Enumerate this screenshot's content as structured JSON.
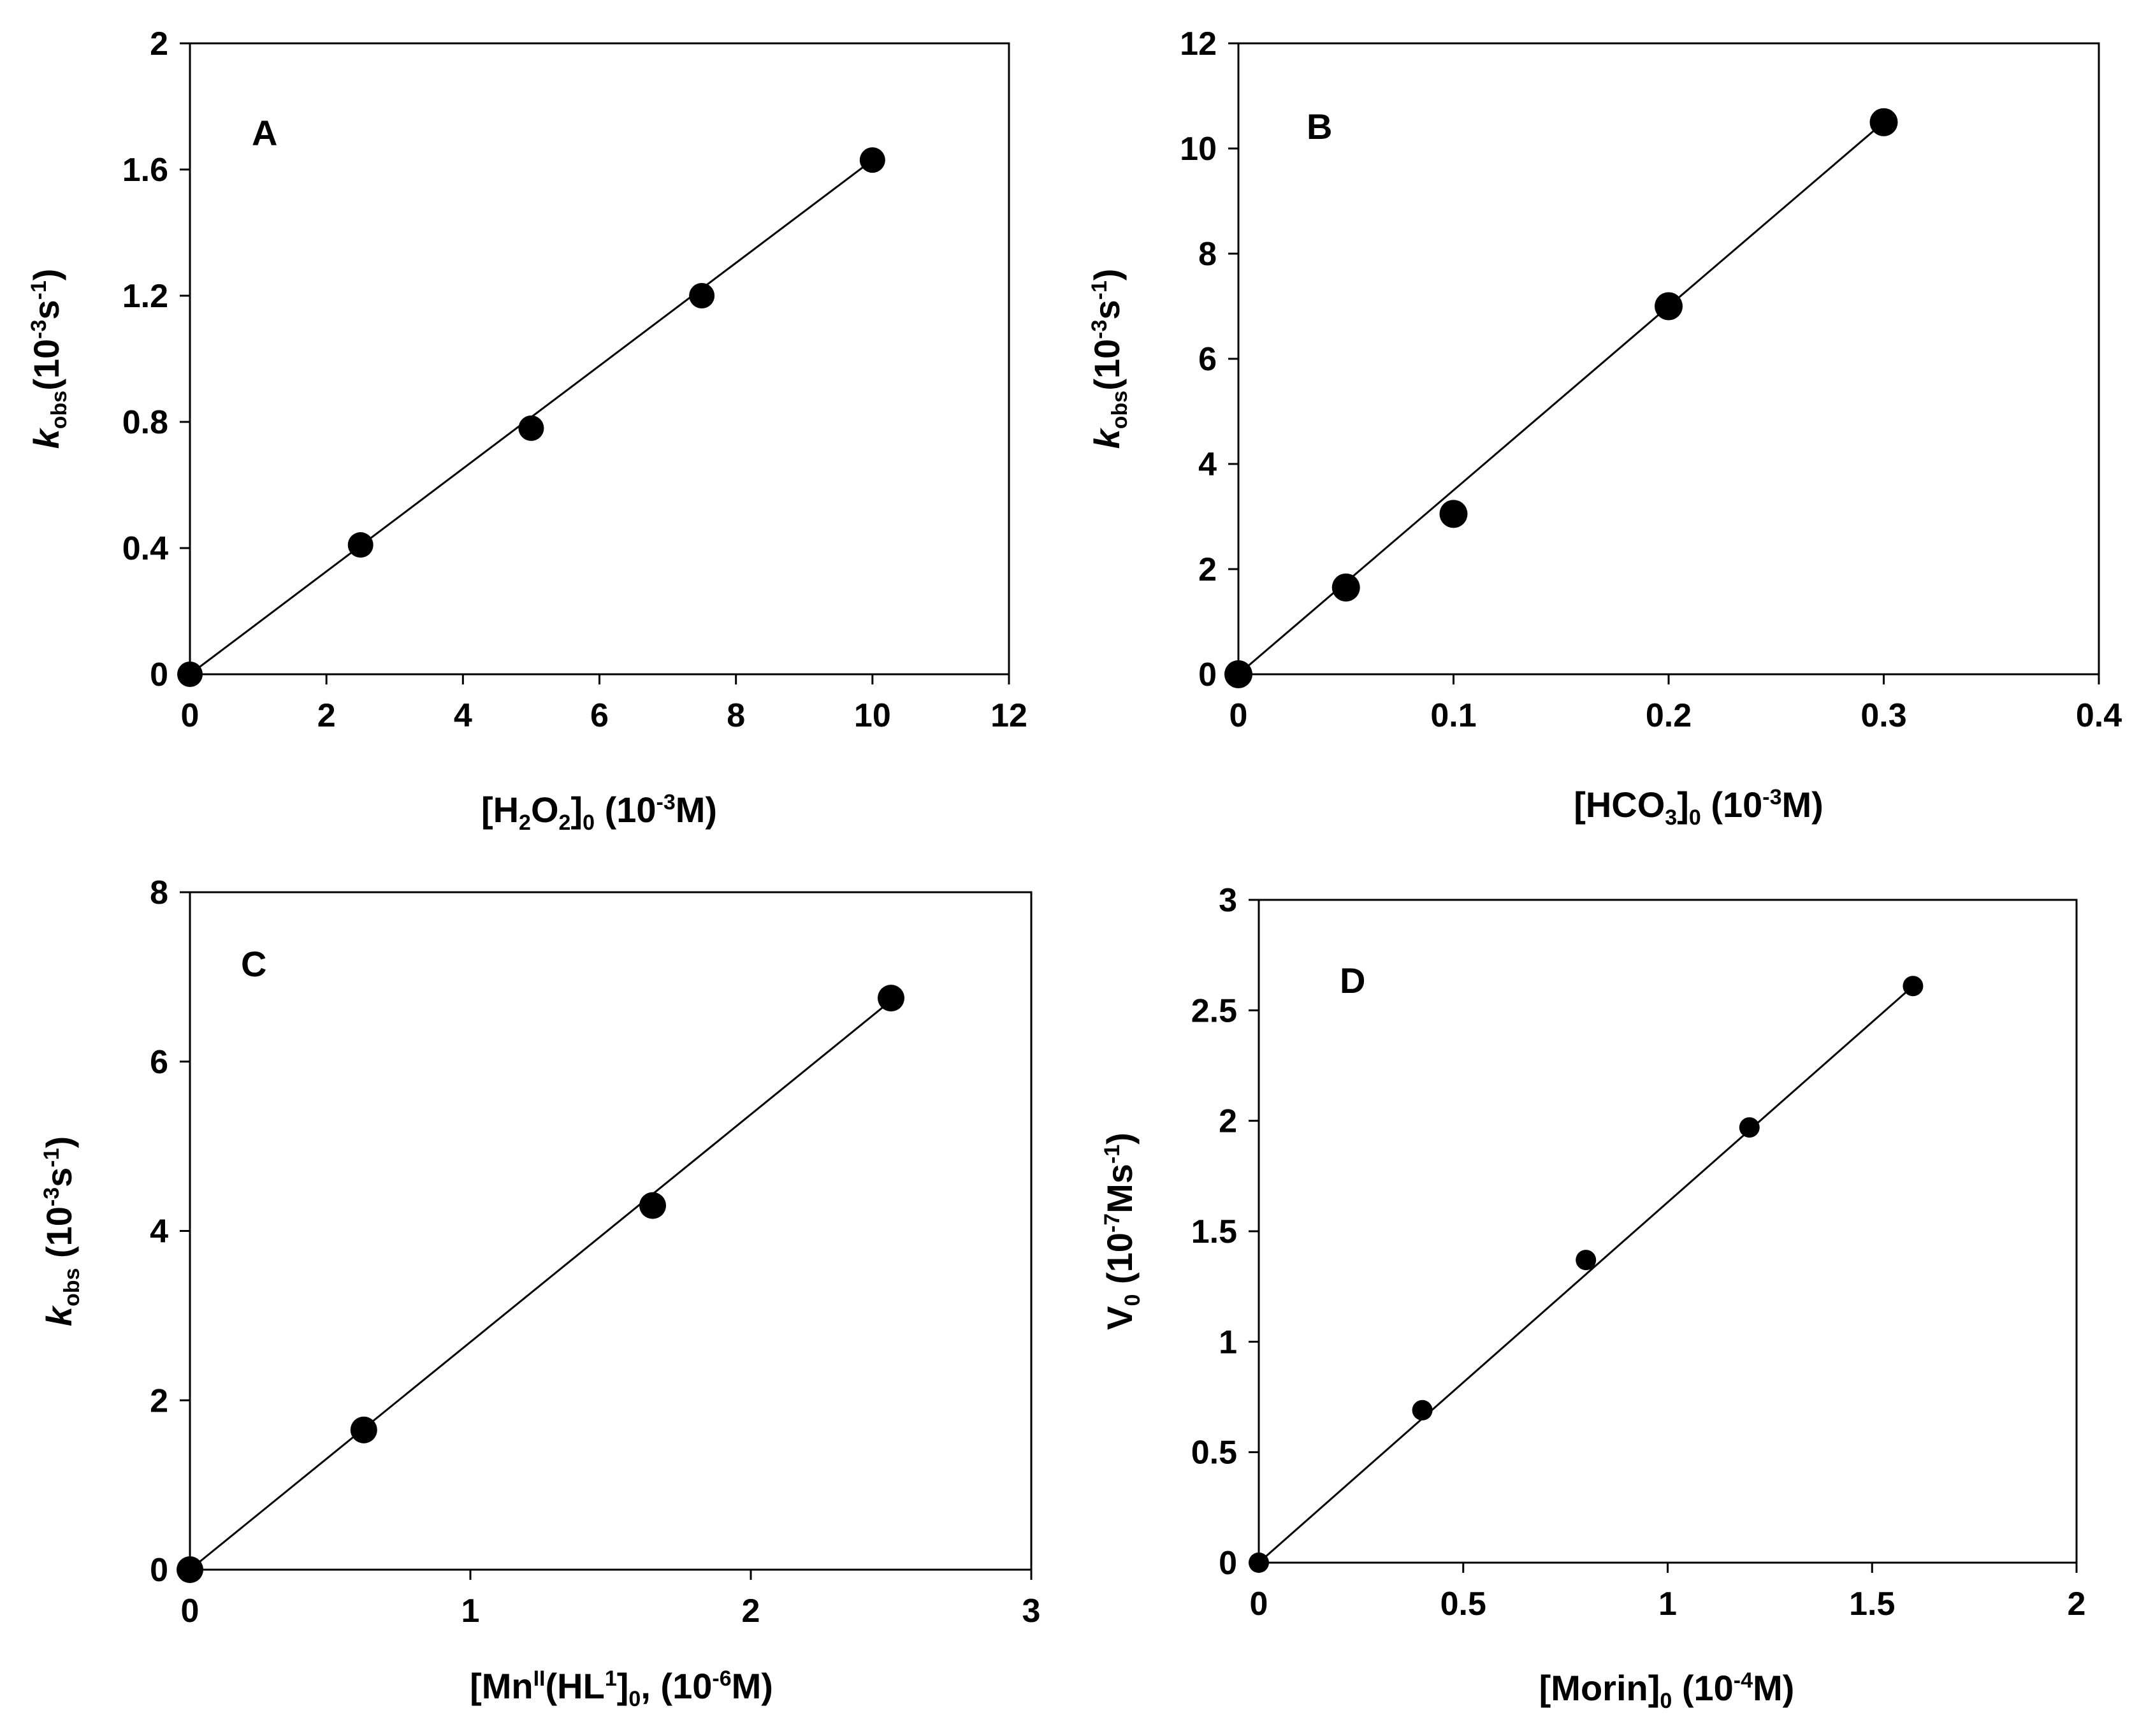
{
  "chart_data": [
    {
      "type": "scatter",
      "panel": "A",
      "ylabel": {
        "symbol": "k",
        "subscript": "obs",
        "unit_pre": "(10",
        "unit_exp": "-3",
        "unit_mid": "s",
        "unit_exp2": "-1",
        "unit_post": ")"
      },
      "xlabel": {
        "p1": "[H",
        "s1": "2",
        "p2": "O",
        "s2": "2",
        "p3": "]",
        "s3": "0",
        "p4": " (10",
        "e1": "-3",
        "p5": "M)"
      },
      "xlim": [
        0,
        12
      ],
      "ylim": [
        0,
        2
      ],
      "xticks": [
        0,
        2,
        4,
        6,
        8,
        10,
        12
      ],
      "yticks": [
        0,
        0.4,
        0.8,
        1.2,
        1.6,
        2
      ],
      "xtick_labels": [
        "0",
        "2",
        "4",
        "6",
        "8",
        "10",
        "12"
      ],
      "ytick_labels": [
        "0",
        "0.4",
        "0.8",
        "1.2",
        "1.6",
        "2"
      ],
      "x": [
        0,
        2.5,
        5,
        7.5,
        10
      ],
      "y": [
        0,
        0.41,
        0.78,
        1.2,
        1.63
      ],
      "fit": {
        "x": [
          0,
          10
        ],
        "y": [
          0,
          1.63
        ]
      }
    },
    {
      "type": "scatter",
      "panel": "B",
      "ylabel": {
        "symbol": "k",
        "subscript": "obs",
        "unit_pre": "(10",
        "unit_exp": "-3",
        "unit_mid": "s",
        "unit_exp2": "-1",
        "unit_post": ")"
      },
      "xlabel": {
        "p1": "[HCO",
        "s1": "3",
        "p2": "]",
        "s2": "0",
        "p3": " (10",
        "e1": "-3",
        "p4": "M)"
      },
      "xlim": [
        0,
        0.4
      ],
      "ylim": [
        0,
        12
      ],
      "xticks": [
        0,
        0.1,
        0.2,
        0.3,
        0.4
      ],
      "yticks": [
        0,
        2,
        4,
        6,
        8,
        10,
        12
      ],
      "xtick_labels": [
        "0",
        "0.1",
        "0.2",
        "0.3",
        "0.4"
      ],
      "ytick_labels": [
        "0",
        "2",
        "4",
        "6",
        "8",
        "10",
        "12"
      ],
      "x": [
        0,
        0.05,
        0.1,
        0.2,
        0.3
      ],
      "y": [
        0,
        1.65,
        3.05,
        7.0,
        10.5
      ],
      "fit": {
        "x": [
          0,
          0.3
        ],
        "y": [
          0,
          10.5
        ]
      }
    },
    {
      "type": "scatter",
      "panel": "C",
      "ylabel": {
        "symbol": "k",
        "subscript": "obs",
        "unit_pre": " (10",
        "unit_exp": "-3",
        "unit_mid": "s",
        "unit_exp2": "-1",
        "unit_post": ")"
      },
      "xlabel": {
        "p1": "[Mn",
        "e1": "II",
        "p2": "(HL",
        "e2": "1",
        "p3": "]",
        "s1": "0",
        "p4": ", (10",
        "e3": "-6",
        "p5": "M)"
      },
      "xlim": [
        0,
        3
      ],
      "ylim": [
        0,
        8
      ],
      "xticks": [
        0,
        1,
        2,
        3
      ],
      "yticks": [
        0,
        2,
        4,
        6,
        8
      ],
      "xtick_labels": [
        "0",
        "1",
        "2",
        "3"
      ],
      "ytick_labels": [
        "0",
        "2",
        "4",
        "6",
        "8"
      ],
      "x": [
        0,
        0.62,
        1.65,
        2.5
      ],
      "y": [
        0,
        1.65,
        4.3,
        6.75
      ],
      "fit": {
        "x": [
          0,
          2.5
        ],
        "y": [
          0,
          6.72
        ]
      }
    },
    {
      "type": "scatter",
      "panel": "D",
      "ylabel": {
        "symbol": "V",
        "subscript": "0",
        "unit_pre": " (10",
        "unit_exp": "-7",
        "unit_mid": "Ms",
        "unit_exp2": "-1",
        "unit_post": ")"
      },
      "xlabel": {
        "p1": "[Morin]",
        "s1": "0",
        "p2": " (10",
        "e1": "-4",
        "p3": "M)"
      },
      "xlim": [
        0,
        2
      ],
      "ylim": [
        0,
        3
      ],
      "xticks": [
        0,
        0.5,
        1,
        1.5,
        2
      ],
      "yticks": [
        0,
        0.5,
        1,
        1.5,
        2,
        2.5,
        3
      ],
      "xtick_labels": [
        "0",
        "0.5",
        "1",
        "1.5",
        "2"
      ],
      "ytick_labels": [
        "0",
        "0.5",
        "1",
        "1.5",
        "2",
        "2.5",
        "3"
      ],
      "x": [
        0,
        0.4,
        0.8,
        1.2,
        1.6
      ],
      "y": [
        0,
        0.69,
        1.37,
        1.97,
        2.61
      ],
      "fit": {
        "x": [
          0,
          1.6
        ],
        "y": [
          0,
          2.61
        ]
      }
    }
  ]
}
